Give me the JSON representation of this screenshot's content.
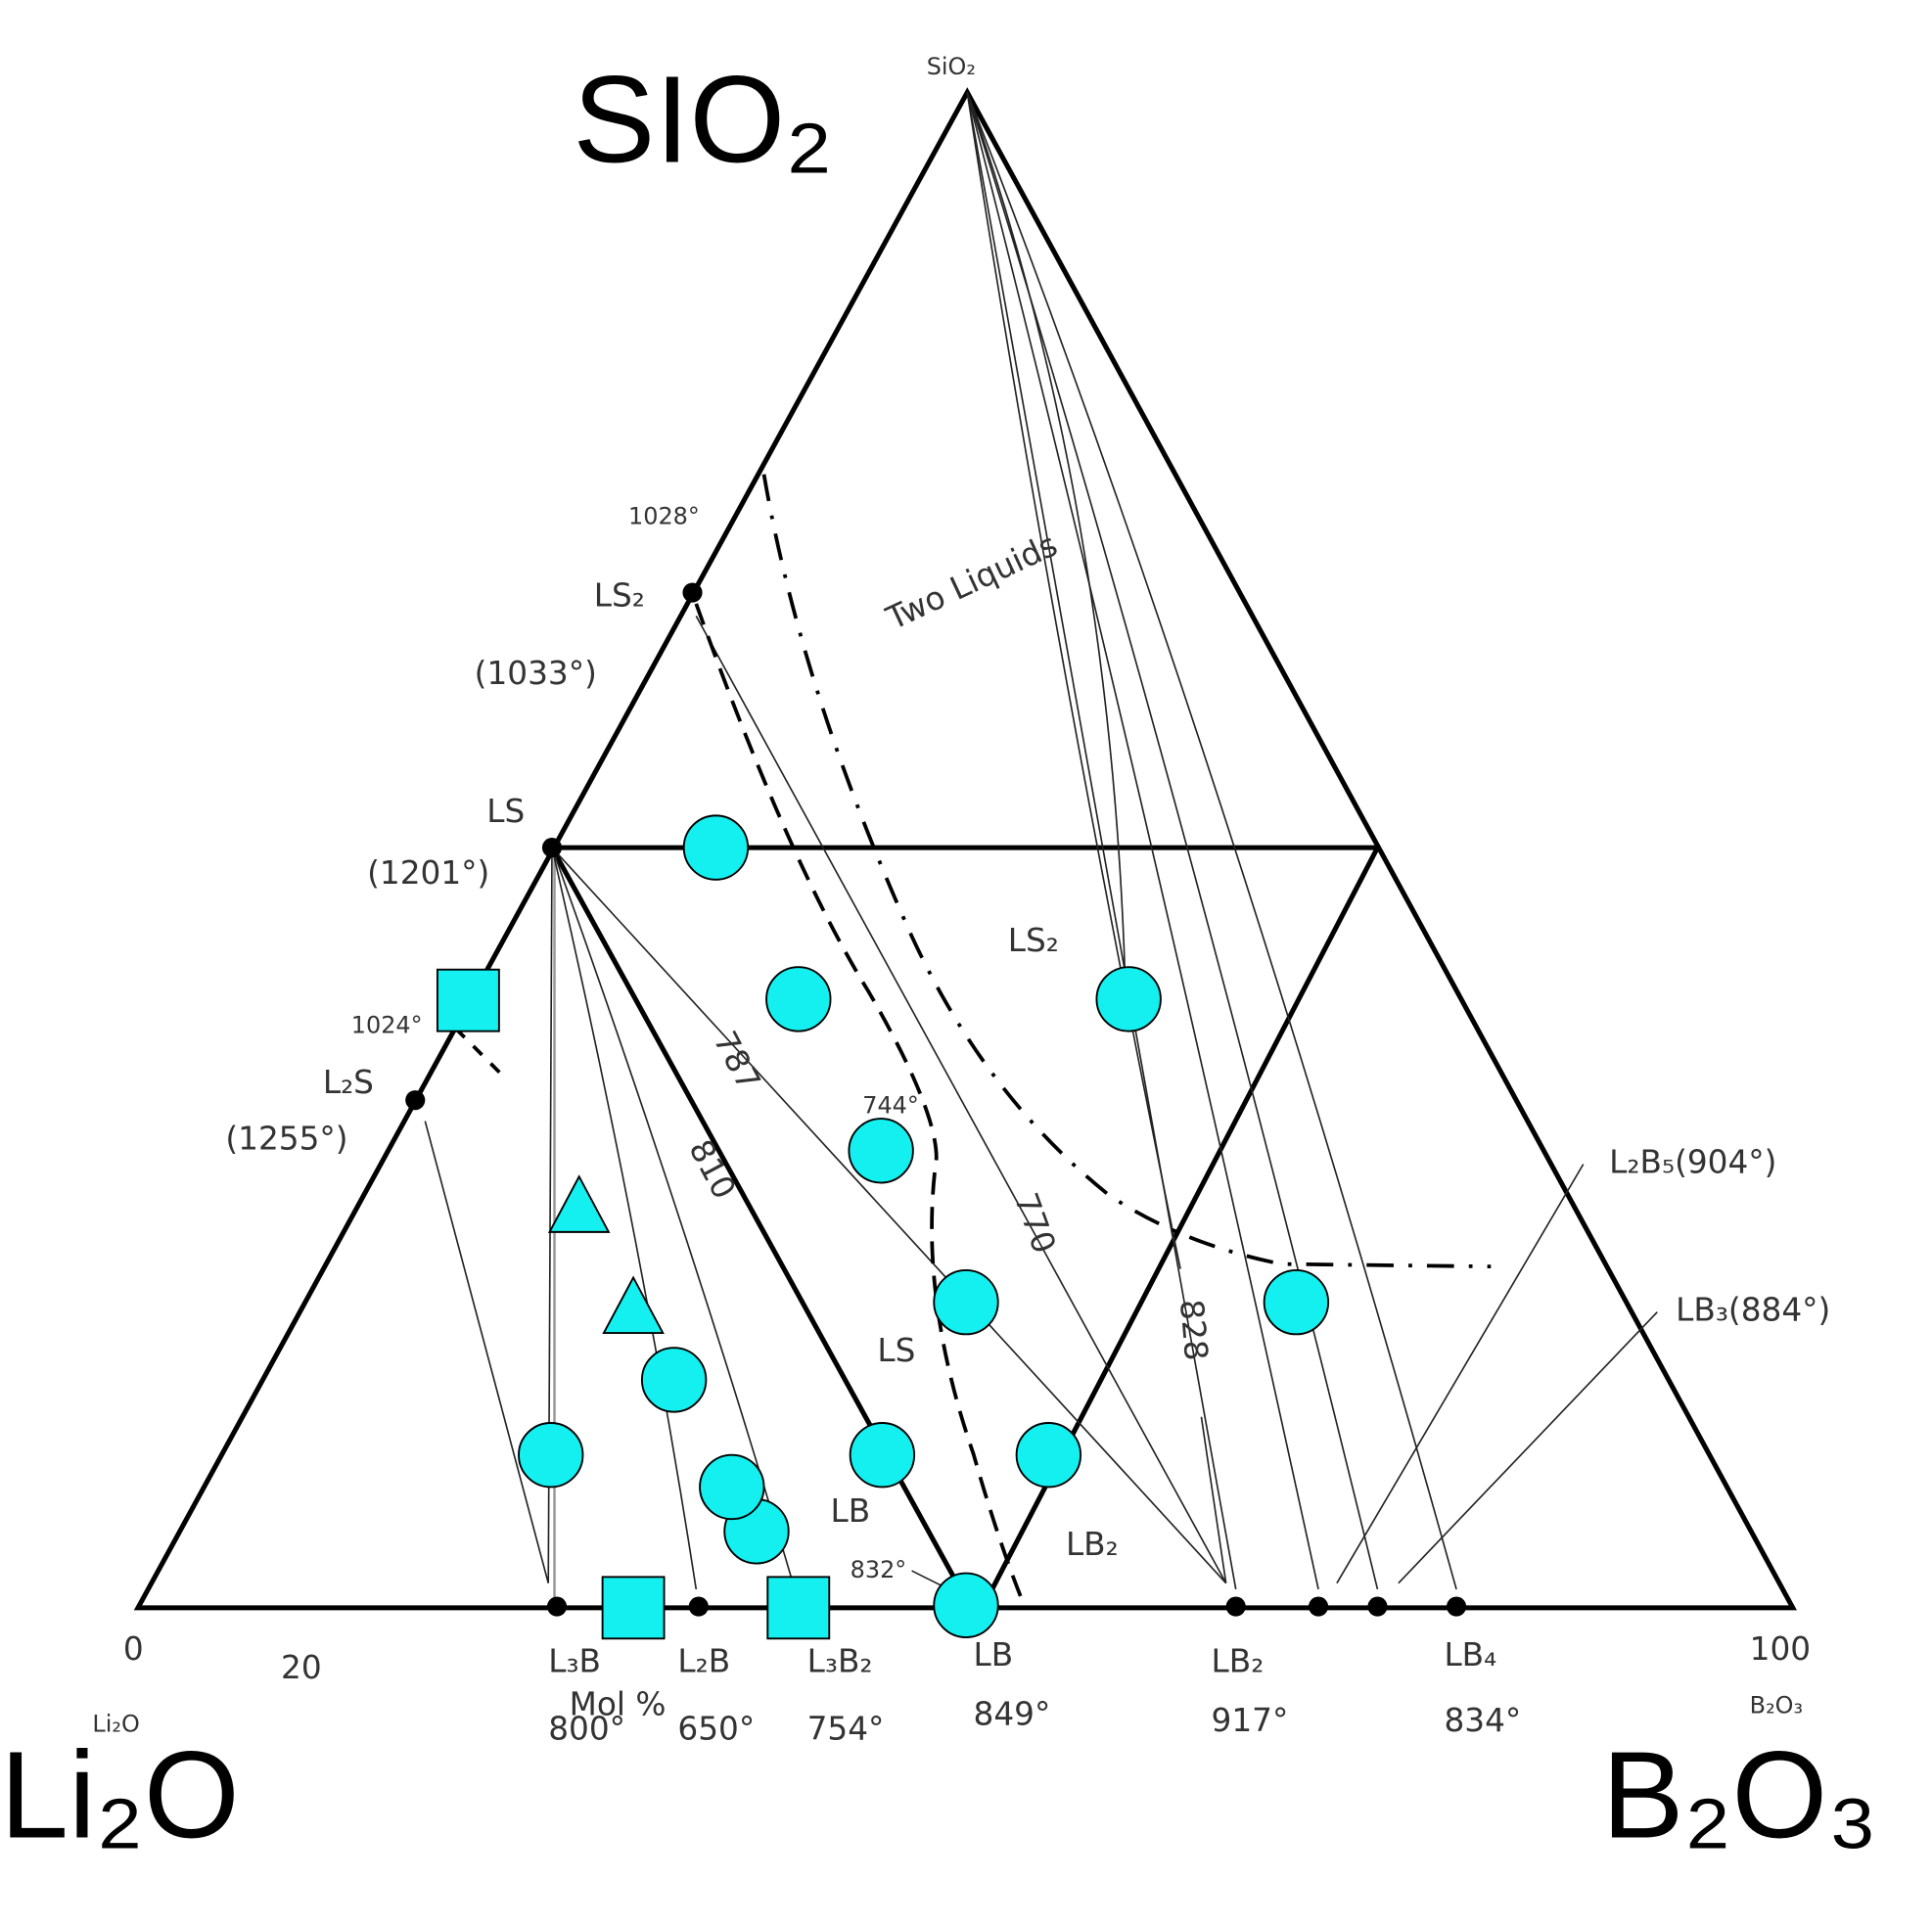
{
  "corners": {
    "top": {
      "big": "SIO₂",
      "small": "SiO₂"
    },
    "left": {
      "big": "Li₂O",
      "small": "Li₂O"
    },
    "right": {
      "big": "B₂O₃",
      "small": "B₂O₃"
    }
  },
  "axis": {
    "start": "0",
    "tick": "20",
    "end": "100",
    "unit": "Mol %"
  },
  "compounds": [
    {
      "label": "L₃B",
      "temp": "800°"
    },
    {
      "label": "L₂B",
      "temp": "650°"
    },
    {
      "label": "L₃B₂",
      "temp": "754°"
    },
    {
      "label": "LB",
      "temp": "849°"
    },
    {
      "label": "LB₂",
      "temp": "917°"
    },
    {
      "label": "LB₄",
      "temp": "834°"
    }
  ],
  "edge_points": [
    {
      "label": "LS₂",
      "temp": "(1033°)"
    },
    {
      "label": "LS",
      "temp": "(1201°)"
    },
    {
      "label": "L₂S",
      "temp": "(1255°)"
    }
  ],
  "temperatures": [
    "1028°",
    "1024°",
    "744°",
    "832°"
  ],
  "isotherms": [
    "787",
    "810",
    "770",
    "828"
  ],
  "fields": [
    "Two Liquids",
    "LS₂",
    "LS",
    "LB",
    "LB₂"
  ],
  "annotations": [
    "L₂B₅(904°)",
    "LB₃(884°)"
  ]
}
